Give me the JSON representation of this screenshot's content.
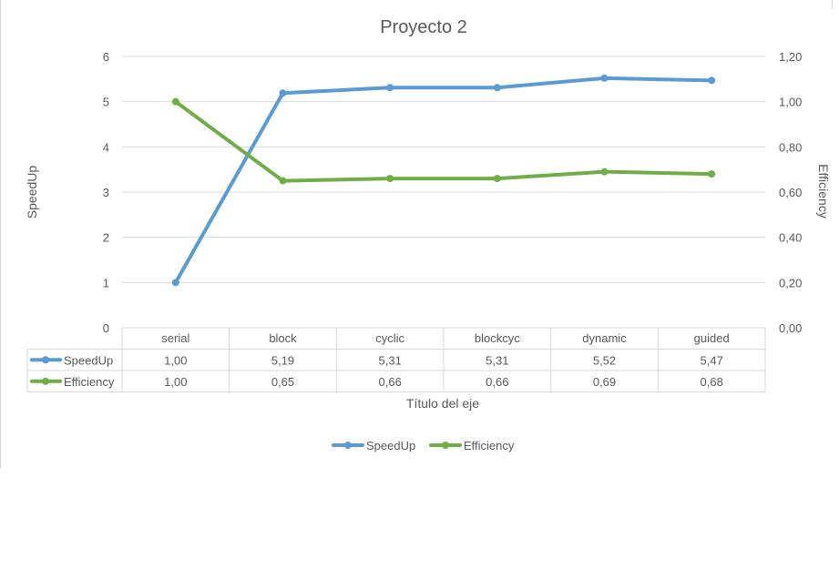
{
  "chart_data": {
    "type": "line",
    "title": "Proyecto 2",
    "xlabel": "Título del eje",
    "ylabel": "SpeedUp",
    "y2label": "Efficiency",
    "categories": [
      "serial",
      "block",
      "cyclic",
      "blockcyc",
      "dynamic",
      "guided"
    ],
    "ylim": [
      0,
      6
    ],
    "y2lim": [
      0,
      1.2
    ],
    "y_ticks": [
      "0",
      "1",
      "2",
      "3",
      "4",
      "5",
      "6"
    ],
    "y2_ticks": [
      "0,00",
      "0,20",
      "0,40",
      "0,60",
      "0,80",
      "1,00",
      "1,20"
    ],
    "grid": true,
    "legend_position": "bottom",
    "series": [
      {
        "name": "SpeedUp",
        "axis": "left",
        "color": "#5b9bd5",
        "values": [
          1.0,
          5.19,
          5.31,
          5.31,
          5.52,
          5.47
        ],
        "labels": [
          "1,00",
          "5,19",
          "5,31",
          "5,31",
          "5,52",
          "5,47"
        ]
      },
      {
        "name": "Efficiency",
        "axis": "right",
        "color": "#70ad47",
        "values": [
          1.0,
          0.65,
          0.66,
          0.66,
          0.69,
          0.68
        ],
        "labels": [
          "1,00",
          "0,65",
          "0,66",
          "0,66",
          "0,69",
          "0,68"
        ]
      }
    ]
  }
}
